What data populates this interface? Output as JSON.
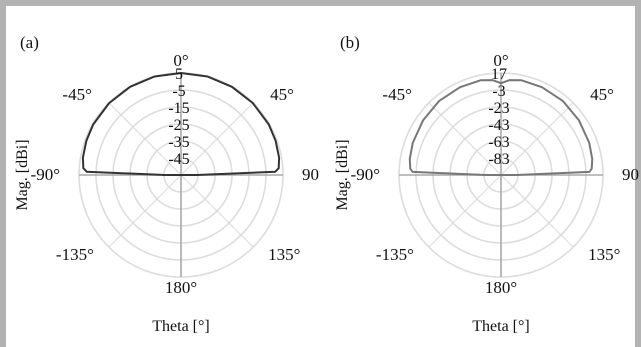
{
  "chart_data": [
    {
      "type": "polar-line",
      "panel_label": "(a)",
      "ylabel": "Mag. [dBi]",
      "xlabel": "Theta [°]",
      "angle_ticks": [
        "0°",
        "45°",
        "90°",
        "135°",
        "180°",
        "-135°",
        "-90°",
        "-45°"
      ],
      "radial_ticks": [
        "5",
        "-5",
        "-15",
        "-25",
        "-35",
        "-45"
      ],
      "rlim": [
        -55,
        5
      ],
      "rings": 6,
      "grid": true,
      "series": [
        {
          "color": "#333333",
          "points": [
            [
              -90,
              -45.5
            ],
            [
              -88,
              0.5
            ],
            [
              -86,
              2.6
            ],
            [
              -80,
              3.6
            ],
            [
              -70,
              4.2
            ],
            [
              -60,
              4.6
            ],
            [
              -45,
              4.8
            ],
            [
              -30,
              4.9
            ],
            [
              -15,
              5.0
            ],
            [
              0,
              5.0
            ],
            [
              15,
              5.0
            ],
            [
              30,
              4.9
            ],
            [
              45,
              4.8
            ],
            [
              60,
              4.6
            ],
            [
              70,
              4.2
            ],
            [
              80,
              3.6
            ],
            [
              86,
              2.6
            ],
            [
              88,
              0.5
            ],
            [
              90,
              -45.5
            ]
          ]
        }
      ]
    },
    {
      "type": "polar-line",
      "panel_label": "(b)",
      "ylabel": "Mag. [dBi]",
      "xlabel": "Theta [°]",
      "angle_ticks": [
        "0°",
        "45°",
        "90°",
        "135°",
        "180°",
        "-135°",
        "-90°",
        "-45°"
      ],
      "radial_ticks": [
        "17",
        "-3",
        "-23",
        "-43",
        "-63",
        "-83"
      ],
      "rlim": [
        -103,
        17
      ],
      "rings": 6,
      "grid": true,
      "series": [
        {
          "color": "#777777",
          "points": [
            [
              -90,
              -85
            ],
            [
              -88,
              1
            ],
            [
              -86,
              4
            ],
            [
              -80,
              6
            ],
            [
              -70,
              7.5
            ],
            [
              -55,
              9
            ],
            [
              -40,
              10.5
            ],
            [
              -25,
              11
            ],
            [
              -12,
              11
            ],
            [
              -5,
              9
            ],
            [
              0,
              5
            ],
            [
              5,
              9
            ],
            [
              12,
              11
            ],
            [
              25,
              11
            ],
            [
              40,
              10.5
            ],
            [
              55,
              9
            ],
            [
              70,
              7.5
            ],
            [
              80,
              6
            ],
            [
              86,
              4
            ],
            [
              88,
              1
            ],
            [
              90,
              -85
            ]
          ]
        }
      ]
    }
  ]
}
